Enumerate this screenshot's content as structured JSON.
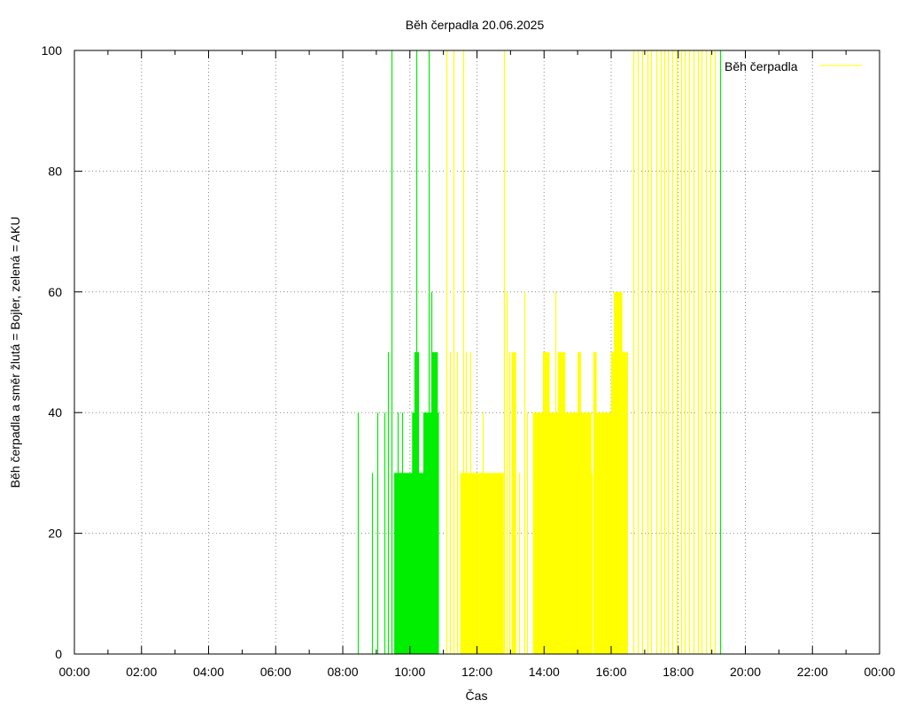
{
  "chart_data": {
    "type": "bar",
    "title": "Běh čerpadla 20.06.2025",
    "xlabel": "Čas",
    "ylabel": "Běh čerpadla a směr žlutá = Bojler, zelená = AKU",
    "xlim": [
      "00:00",
      "24:00"
    ],
    "ylim": [
      0,
      100
    ],
    "x_ticks": [
      "00:00",
      "02:00",
      "04:00",
      "06:00",
      "08:00",
      "10:00",
      "12:00",
      "14:00",
      "16:00",
      "18:00",
      "20:00",
      "22:00",
      "00:00"
    ],
    "y_ticks": [
      "0",
      "20",
      "40",
      "60",
      "80",
      "100"
    ],
    "grid": true,
    "legend": {
      "position": "top-right",
      "label": "Běh čerpadla"
    },
    "colors": {
      "boiler": "#ffff00",
      "aku": "#00ee00",
      "grid": "#888888",
      "axis": "#000000"
    },
    "series": [
      {
        "direction": "AKU",
        "color": "#00ee00",
        "spikes": [
          [
            "08:27",
            40
          ],
          [
            "08:53",
            30
          ],
          [
            "09:02",
            40
          ],
          [
            "09:14",
            40
          ],
          [
            "09:21",
            50
          ],
          [
            "09:27",
            100
          ],
          [
            "09:39",
            40
          ],
          [
            "09:46",
            40
          ],
          [
            "10:12",
            100
          ],
          [
            "10:15",
            50
          ],
          [
            "10:34",
            100
          ],
          [
            "10:39",
            60
          ],
          [
            "10:46",
            50
          ]
        ],
        "blocks": [
          [
            "09:32",
            "09:58",
            30
          ],
          [
            "09:55",
            "10:06",
            30
          ],
          [
            "10:04",
            "10:12",
            40
          ],
          [
            "10:08",
            "10:16",
            50
          ],
          [
            "10:16",
            "10:30",
            30
          ],
          [
            "10:24",
            "10:52",
            40
          ],
          [
            "10:40",
            "10:50",
            50
          ]
        ]
      },
      {
        "direction": "Bojler",
        "color": "#ffff00",
        "spikes": [
          [
            "11:05",
            100
          ],
          [
            "11:12",
            50
          ],
          [
            "11:18",
            100
          ],
          [
            "11:25",
            50
          ],
          [
            "11:30",
            30
          ],
          [
            "11:35",
            100
          ],
          [
            "11:40",
            50
          ],
          [
            "11:48",
            50
          ],
          [
            "11:52",
            30
          ],
          [
            "12:10",
            40
          ],
          [
            "12:48",
            100
          ],
          [
            "12:53",
            60
          ],
          [
            "12:58",
            50
          ],
          [
            "13:05",
            50
          ],
          [
            "13:15",
            30
          ],
          [
            "13:25",
            60
          ],
          [
            "13:30",
            40
          ],
          [
            "14:20",
            60
          ],
          [
            "14:35",
            50
          ],
          [
            "15:25",
            30
          ],
          [
            "16:05",
            30
          ],
          [
            "16:40",
            100
          ],
          [
            "16:48",
            100
          ],
          [
            "16:56",
            100
          ],
          [
            "17:05",
            100
          ],
          [
            "17:12",
            100
          ],
          [
            "17:20",
            100
          ],
          [
            "17:28",
            100
          ],
          [
            "17:35",
            100
          ],
          [
            "17:42",
            100
          ],
          [
            "17:50",
            100
          ],
          [
            "17:58",
            100
          ],
          [
            "18:05",
            100
          ],
          [
            "18:12",
            100
          ],
          [
            "18:20",
            100
          ],
          [
            "18:28",
            100
          ],
          [
            "18:35",
            100
          ],
          [
            "18:42",
            100
          ],
          [
            "18:50",
            100
          ],
          [
            "18:58",
            100
          ],
          [
            "19:05",
            100
          ]
        ],
        "blocks": [
          [
            "11:30",
            "12:05",
            30
          ],
          [
            "12:05",
            "12:15",
            30
          ],
          [
            "12:15",
            "12:48",
            30
          ],
          [
            "13:02",
            "13:10",
            50
          ],
          [
            "13:40",
            "13:58",
            40
          ],
          [
            "13:58",
            "14:10",
            50
          ],
          [
            "14:10",
            "14:45",
            40
          ],
          [
            "14:25",
            "14:38",
            50
          ],
          [
            "14:45",
            "15:10",
            40
          ],
          [
            "15:00",
            "15:06",
            50
          ],
          [
            "15:10",
            "15:25",
            40
          ],
          [
            "15:28",
            "15:34",
            50
          ],
          [
            "15:34",
            "16:00",
            40
          ],
          [
            "16:00",
            "16:10",
            50
          ],
          [
            "16:05",
            "16:20",
            60
          ],
          [
            "16:20",
            "16:30",
            50
          ]
        ]
      },
      {
        "direction": "AKU",
        "color": "#00ee00",
        "spikes": [
          [
            "19:15",
            100
          ]
        ],
        "blocks": []
      }
    ]
  }
}
